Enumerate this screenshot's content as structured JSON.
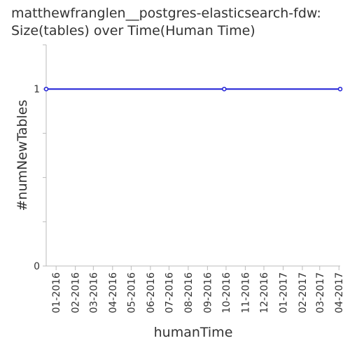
{
  "chart_data": {
    "type": "line",
    "title": "matthewfranglen__postgres-elasticsearch-fdw:",
    "subtitle": "Size(tables) over Time(Human Time)",
    "xlabel": "humanTime",
    "ylabel": "#numNewTables",
    "x_tick_labels": [
      "01-2016",
      "02-2016",
      "03-2016",
      "04-2016",
      "05-2016",
      "06-2016",
      "07-2016",
      "08-2016",
      "09-2016",
      "10-2016",
      "11-2016",
      "12-2016",
      "01-2017",
      "02-2017",
      "03-2017",
      "04-2017"
    ],
    "x_range": [
      "2015-12-16",
      "2017-04-03"
    ],
    "y_ticks": [
      0,
      1
    ],
    "ylim": [
      0,
      1.25
    ],
    "series": [
      {
        "color": "#1f1fd6",
        "points": [
          {
            "x": "2015-12-16",
            "y": 1
          },
          {
            "x": "2016-09-28",
            "y": 1
          },
          {
            "x": "2017-04-03",
            "y": 1
          }
        ]
      }
    ],
    "grid": false
  }
}
